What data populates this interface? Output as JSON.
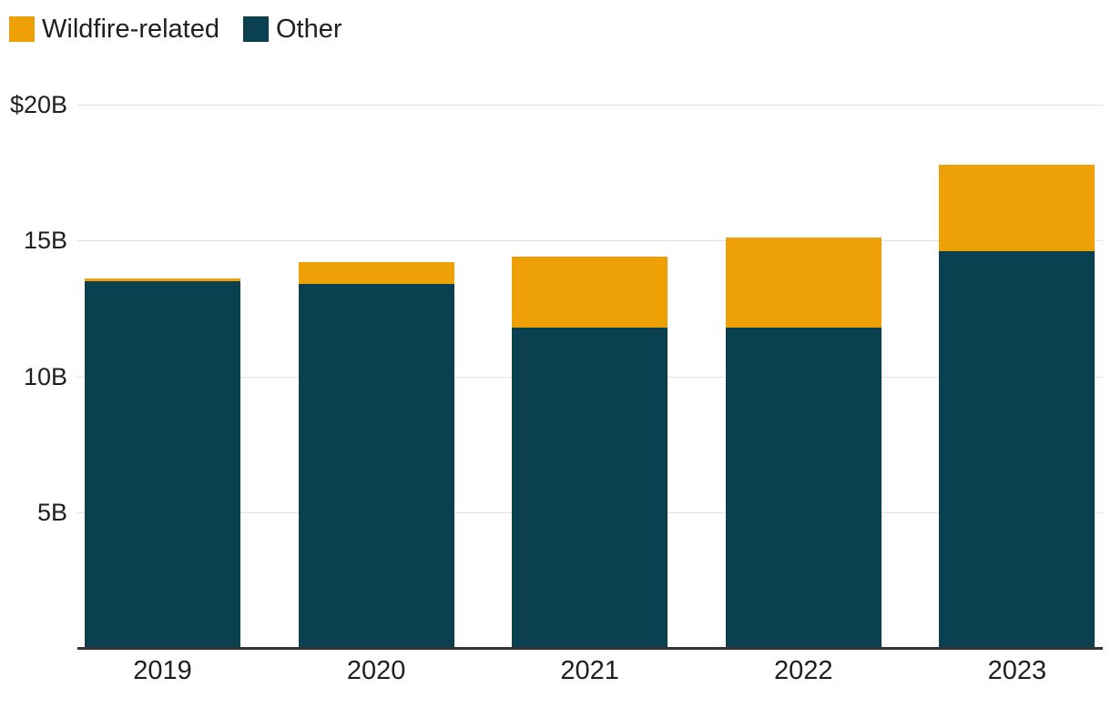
{
  "legend": {
    "items": [
      {
        "label": "Wildfire-related",
        "color": "#EDA107"
      },
      {
        "label": "Other",
        "color": "#0A404F"
      }
    ]
  },
  "chart_data": {
    "type": "bar",
    "stacked": true,
    "unit": "billions USD",
    "categories": [
      "2019",
      "2020",
      "2021",
      "2022",
      "2023"
    ],
    "series": [
      {
        "name": "Other",
        "color": "#0A404F",
        "values": [
          13.5,
          13.4,
          11.8,
          11.8,
          14.6
        ]
      },
      {
        "name": "Wildfire-related",
        "color": "#EDA107",
        "values": [
          0.1,
          0.8,
          2.6,
          3.3,
          3.2
        ]
      }
    ],
    "totals": [
      13.6,
      14.2,
      14.4,
      15.1,
      17.8
    ],
    "ylim": [
      0,
      20
    ],
    "y_ticks": [
      {
        "value": 5,
        "label": "5B"
      },
      {
        "value": 10,
        "label": "10B"
      },
      {
        "value": 15,
        "label": "15B"
      },
      {
        "value": 20,
        "label": "$20B"
      }
    ],
    "grid": true,
    "legend_position": "top-left",
    "colors": {
      "gridline": "#E2E2E2",
      "axis_line": "#333333",
      "text": "#1F1F1F",
      "background": "#FFFFFF"
    }
  }
}
